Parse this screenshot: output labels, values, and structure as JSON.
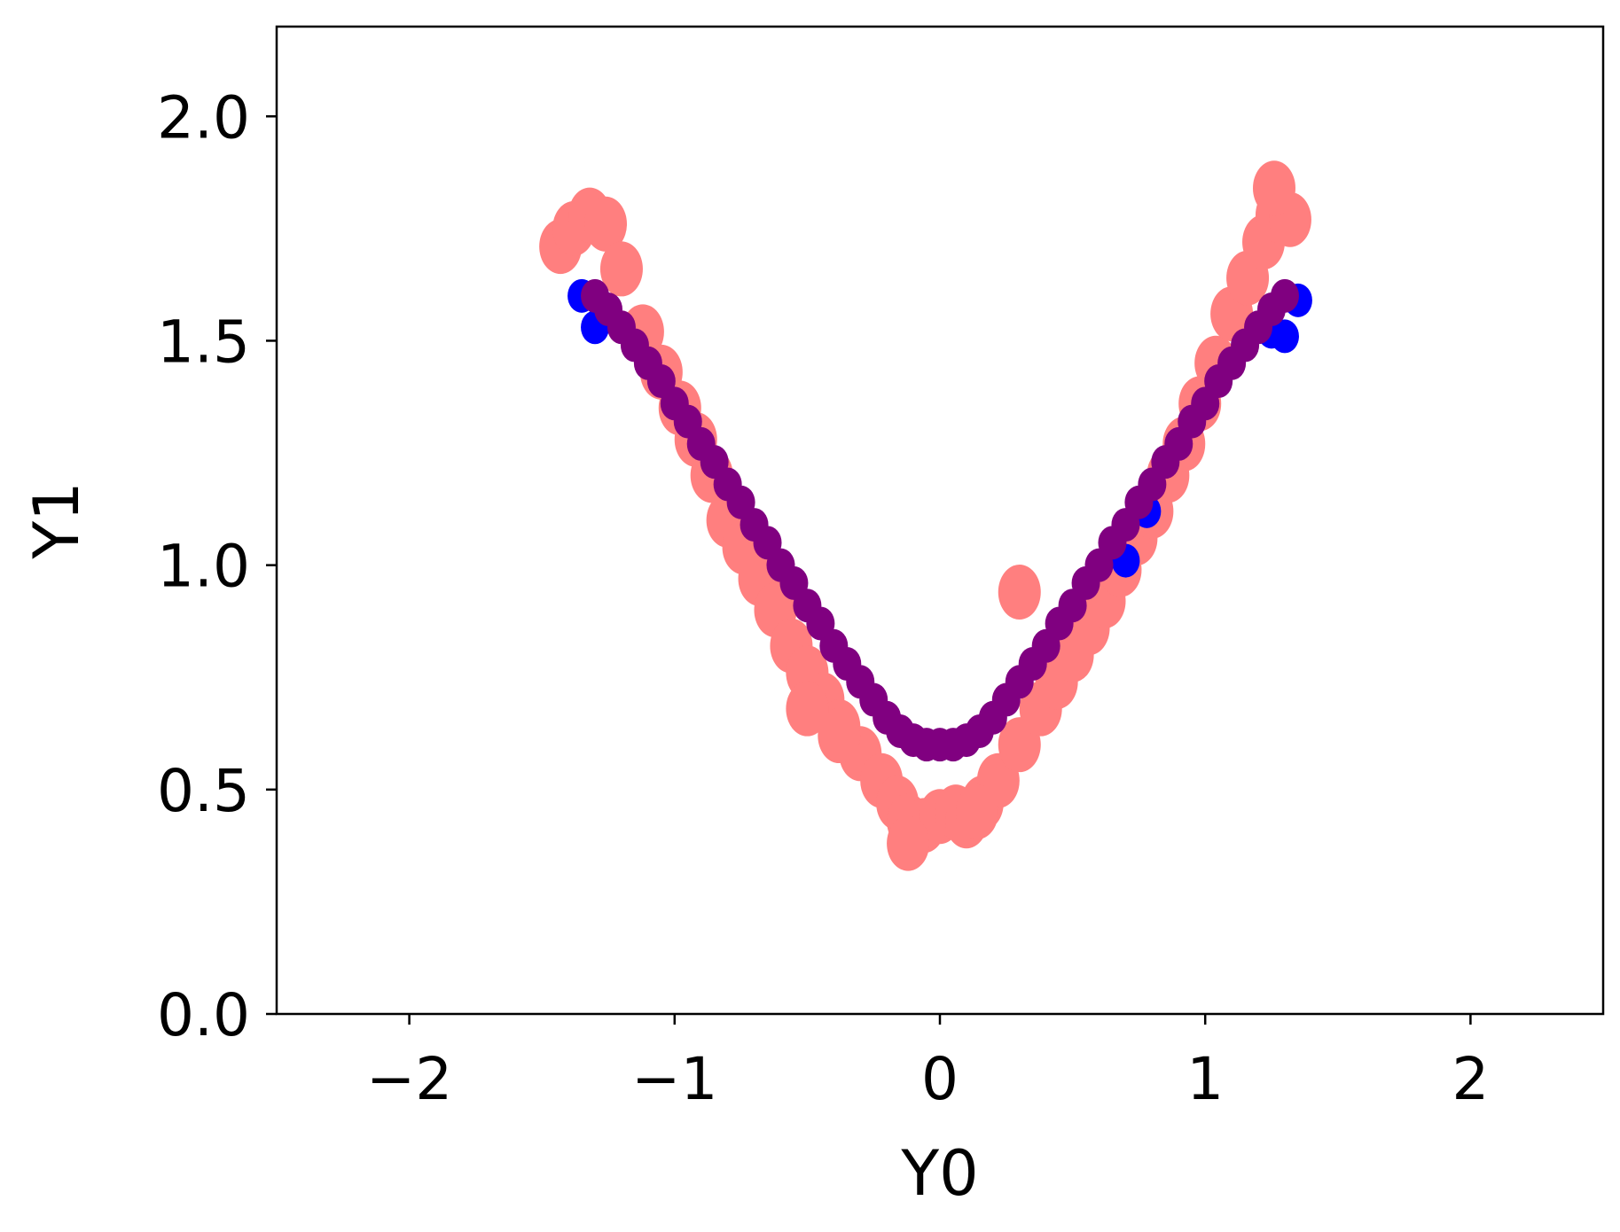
{
  "chart_data": {
    "type": "scatter",
    "title": "",
    "xlabel": "Y0",
    "ylabel": "Y1",
    "xlim": [
      -2.5,
      2.5
    ],
    "ylim": [
      0.0,
      2.2
    ],
    "xticks": [
      -2,
      -1,
      0,
      1,
      2
    ],
    "xtick_labels": [
      "−2",
      "−1",
      "0",
      "1",
      "2"
    ],
    "yticks": [
      0.0,
      0.5,
      1.0,
      1.5,
      2.0
    ],
    "ytick_labels": [
      "0.0",
      "0.5",
      "1.0",
      "1.5",
      "2.0"
    ],
    "grid": false,
    "series": [
      {
        "color": "#ff7f7f",
        "marker_size": "large",
        "x": [
          -1.43,
          -1.38,
          -1.32,
          -1.26,
          -1.2,
          -1.12,
          -1.05,
          -0.98,
          -0.92,
          -0.86,
          -0.8,
          -0.74,
          -0.68,
          -0.62,
          -0.56,
          -0.5,
          -0.44,
          -0.38,
          -0.3,
          -0.22,
          -0.16,
          -0.12,
          -0.06,
          0.0,
          0.06,
          0.1,
          0.16,
          0.22,
          0.3,
          0.38,
          0.44,
          0.5,
          0.56,
          0.62,
          0.68,
          0.74,
          0.8,
          0.86,
          0.92,
          0.98,
          1.04,
          1.1,
          1.16,
          1.22,
          1.27,
          1.32,
          -0.5,
          -0.38,
          -0.12,
          0.14,
          0.3,
          1.26
        ],
        "y": [
          1.71,
          1.75,
          1.78,
          1.76,
          1.66,
          1.52,
          1.43,
          1.35,
          1.28,
          1.2,
          1.1,
          1.04,
          0.97,
          0.9,
          0.82,
          0.76,
          0.7,
          0.64,
          0.58,
          0.52,
          0.47,
          0.43,
          0.42,
          0.44,
          0.45,
          0.43,
          0.47,
          0.52,
          0.6,
          0.68,
          0.74,
          0.8,
          0.86,
          0.92,
          0.99,
          1.06,
          1.12,
          1.2,
          1.27,
          1.36,
          1.45,
          1.56,
          1.64,
          1.72,
          1.78,
          1.77,
          0.68,
          0.62,
          0.38,
          0.45,
          0.94,
          1.84
        ]
      },
      {
        "color": "#0000ff",
        "marker_size": "medium",
        "x": [
          -1.35,
          -1.3,
          1.3,
          1.35,
          1.25,
          0.7,
          0.78
        ],
        "y": [
          1.6,
          1.53,
          1.51,
          1.59,
          1.52,
          1.01,
          1.12
        ]
      },
      {
        "color": "#800080",
        "marker_size": "medium",
        "x": [
          -1.3,
          -1.25,
          -1.2,
          -1.15,
          -1.1,
          -1.05,
          -1.0,
          -0.95,
          -0.9,
          -0.85,
          -0.8,
          -0.75,
          -0.7,
          -0.65,
          -0.6,
          -0.55,
          -0.5,
          -0.45,
          -0.4,
          -0.35,
          -0.3,
          -0.25,
          -0.2,
          -0.15,
          -0.1,
          -0.05,
          0.0,
          0.05,
          0.1,
          0.15,
          0.2,
          0.25,
          0.3,
          0.35,
          0.4,
          0.45,
          0.5,
          0.55,
          0.6,
          0.65,
          0.7,
          0.75,
          0.8,
          0.85,
          0.9,
          0.95,
          1.0,
          1.05,
          1.1,
          1.15,
          1.2,
          1.25,
          1.3
        ],
        "y": [
          1.6,
          1.57,
          1.53,
          1.49,
          1.45,
          1.41,
          1.36,
          1.32,
          1.27,
          1.23,
          1.18,
          1.14,
          1.09,
          1.05,
          1.0,
          0.96,
          0.91,
          0.87,
          0.82,
          0.78,
          0.74,
          0.7,
          0.66,
          0.63,
          0.61,
          0.6,
          0.6,
          0.6,
          0.61,
          0.63,
          0.66,
          0.7,
          0.74,
          0.78,
          0.82,
          0.87,
          0.91,
          0.96,
          1.0,
          1.05,
          1.09,
          1.14,
          1.18,
          1.23,
          1.27,
          1.32,
          1.36,
          1.41,
          1.45,
          1.49,
          1.53,
          1.57,
          1.6
        ]
      }
    ]
  }
}
